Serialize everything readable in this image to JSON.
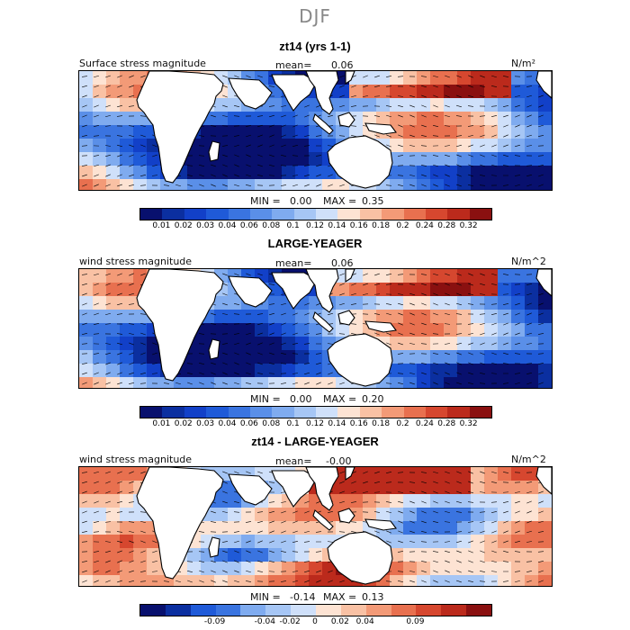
{
  "title": "DJF",
  "panels": [
    {
      "title": "zt14 (yrs 1-1)",
      "field_label": "Surface stress magnitude",
      "mean_label": "mean=",
      "mean_value": "0.06",
      "units": "N/m²",
      "min_label": "MIN =",
      "min_value": "0.00",
      "max_label": "MAX =",
      "max_value": "0.35",
      "colorbar_labels": [
        "0.01",
        "0.02",
        "0.03",
        "0.04",
        "0.06",
        "0.08",
        "0.1",
        "0.12",
        "0.14",
        "0.16",
        "0.18",
        "0.2",
        "0.24",
        "0.28",
        "0.32"
      ]
    },
    {
      "title": "LARGE-YEAGER",
      "field_label": "wind stress magnitude",
      "mean_label": "mean=",
      "mean_value": "0.06",
      "units": "N/m^2",
      "min_label": "MIN =",
      "min_value": "0.00",
      "max_label": "MAX =",
      "max_value": "0.20",
      "colorbar_labels": [
        "0.01",
        "0.02",
        "0.03",
        "0.04",
        "0.06",
        "0.08",
        "0.1",
        "0.12",
        "0.14",
        "0.16",
        "0.18",
        "0.2",
        "0.24",
        "0.28",
        "0.32"
      ]
    },
    {
      "title": "zt14 - LARGE-YEAGER",
      "field_label": "wind stress magnitude",
      "mean_label": "mean=",
      "mean_value": "-0.00",
      "units": "N/m^2",
      "min_label": "MIN =",
      "min_value": "-0.14",
      "max_label": "MAX =",
      "max_value": "0.13",
      "colorbar_labels": [
        "-0.09",
        "-0.04",
        "-0.02",
        "0",
        "0.02",
        "0.04",
        "0.09"
      ]
    }
  ],
  "colors": {
    "seq": [
      "#08106e",
      "#0b2fa0",
      "#1240c8",
      "#1f5ad8",
      "#3a74e0",
      "#5a8fe8",
      "#7fabef",
      "#a6c6f5",
      "#cfe0fa",
      "#fde3d3",
      "#f9c1a4",
      "#f39a77",
      "#e8704f",
      "#d6472f",
      "#bb2a1c",
      "#8a1010"
    ],
    "div": [
      "#08106e",
      "#0b2fa0",
      "#1f5ad8",
      "#3a74e0",
      "#7fabef",
      "#a6c6f5",
      "#cfe0fa",
      "#fde3d3",
      "#f9c1a4",
      "#f39a77",
      "#e8704f",
      "#d6472f",
      "#bb2a1c",
      "#8a1010"
    ],
    "land": "#ffffff",
    "coast": "#000000"
  }
}
